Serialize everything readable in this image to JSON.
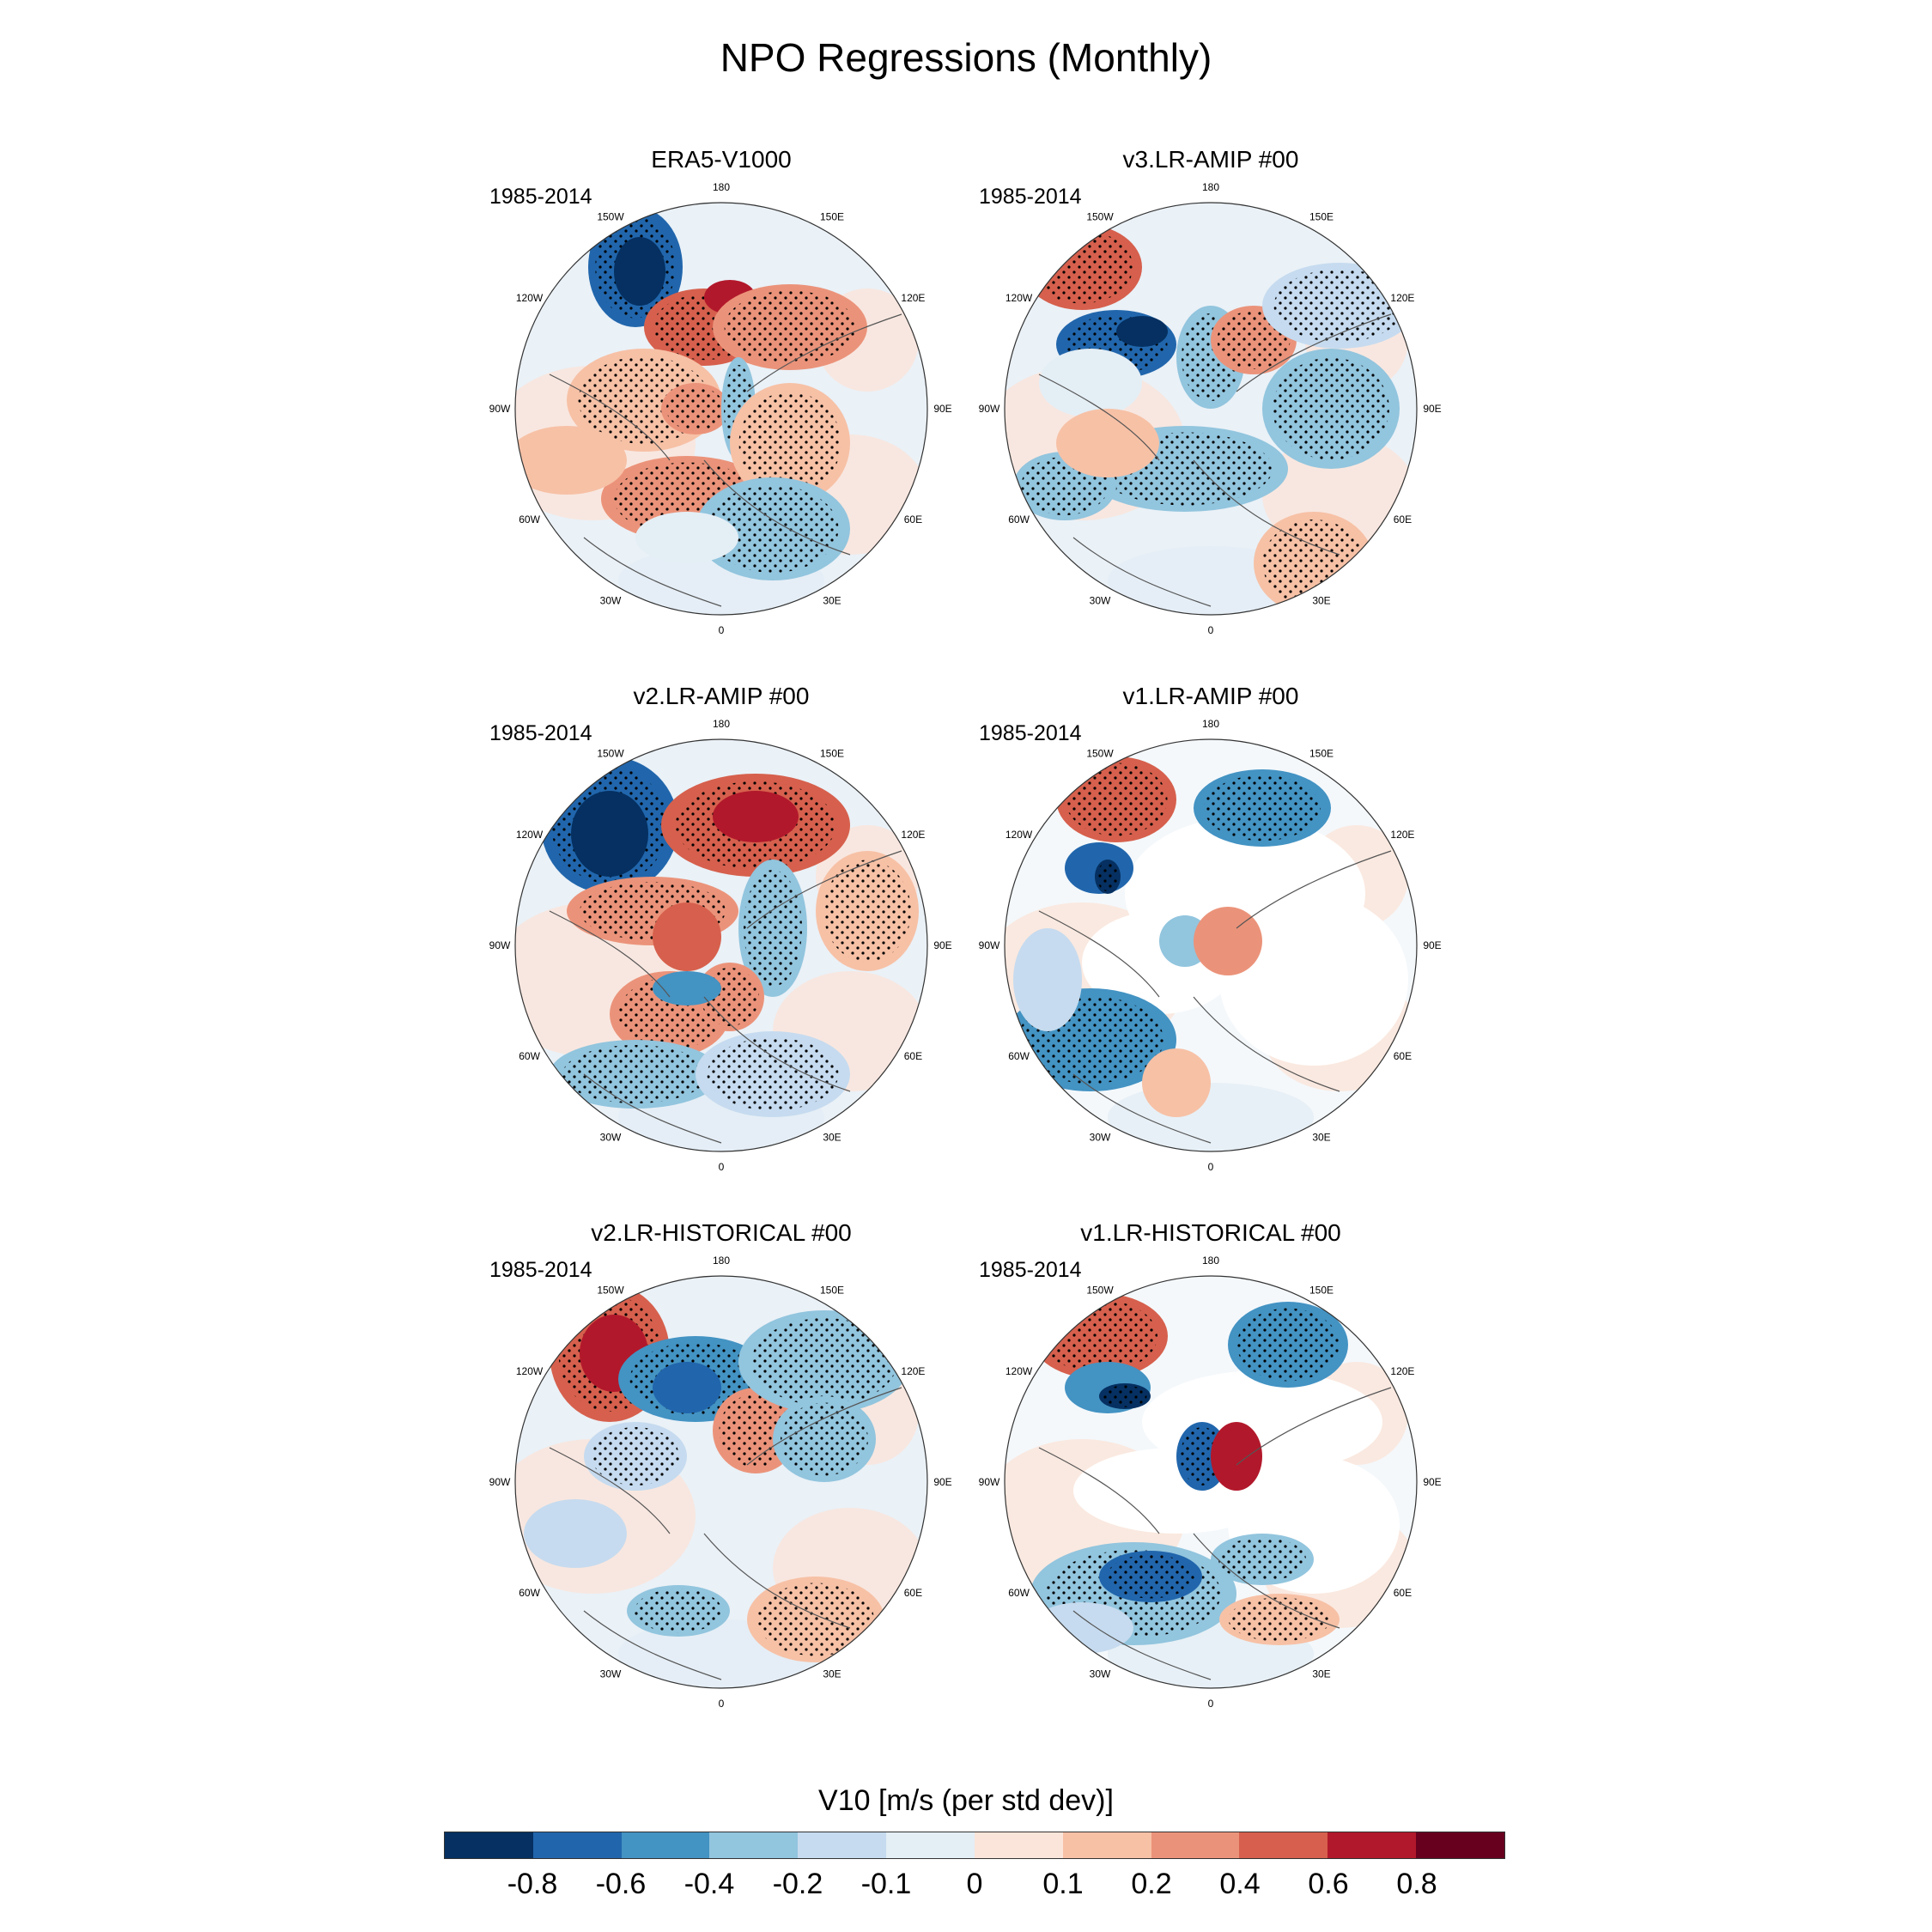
{
  "title": "NPO Regressions (Monthly)",
  "panels": [
    {
      "title": "ERA5-V1000",
      "period": "1985-2014"
    },
    {
      "title": "v3.LR-AMIP  #00",
      "period": "1985-2014"
    },
    {
      "title": "v2.LR-AMIP  #00",
      "period": "1985-2014"
    },
    {
      "title": "v1.LR-AMIP  #00",
      "period": "1985-2014"
    },
    {
      "title": "v2.LR-HISTORICAL  #00",
      "period": "1985-2014"
    },
    {
      "title": "v1.LR-HISTORICAL  #00",
      "period": "1985-2014"
    }
  ],
  "longitude_labels": [
    "180",
    "150E",
    "120E",
    "90E",
    "60E",
    "30E",
    "0",
    "30W",
    "60W",
    "90W",
    "120W",
    "150W"
  ],
  "colorbar": {
    "title": "V10 [m/s (per std dev)]",
    "levels": [
      "-0.8",
      "-0.6",
      "-0.4",
      "-0.2",
      "-0.1",
      "0",
      "0.1",
      "0.2",
      "0.4",
      "0.6",
      "0.8"
    ],
    "colors": [
      "#053061",
      "#2166ac",
      "#4393c3",
      "#92c5de",
      "#c6dbef",
      "#e4eef5",
      "#fbe5da",
      "#f7c1a6",
      "#eb937a",
      "#d6604d",
      "#b2182b",
      "#67001f"
    ]
  }
}
